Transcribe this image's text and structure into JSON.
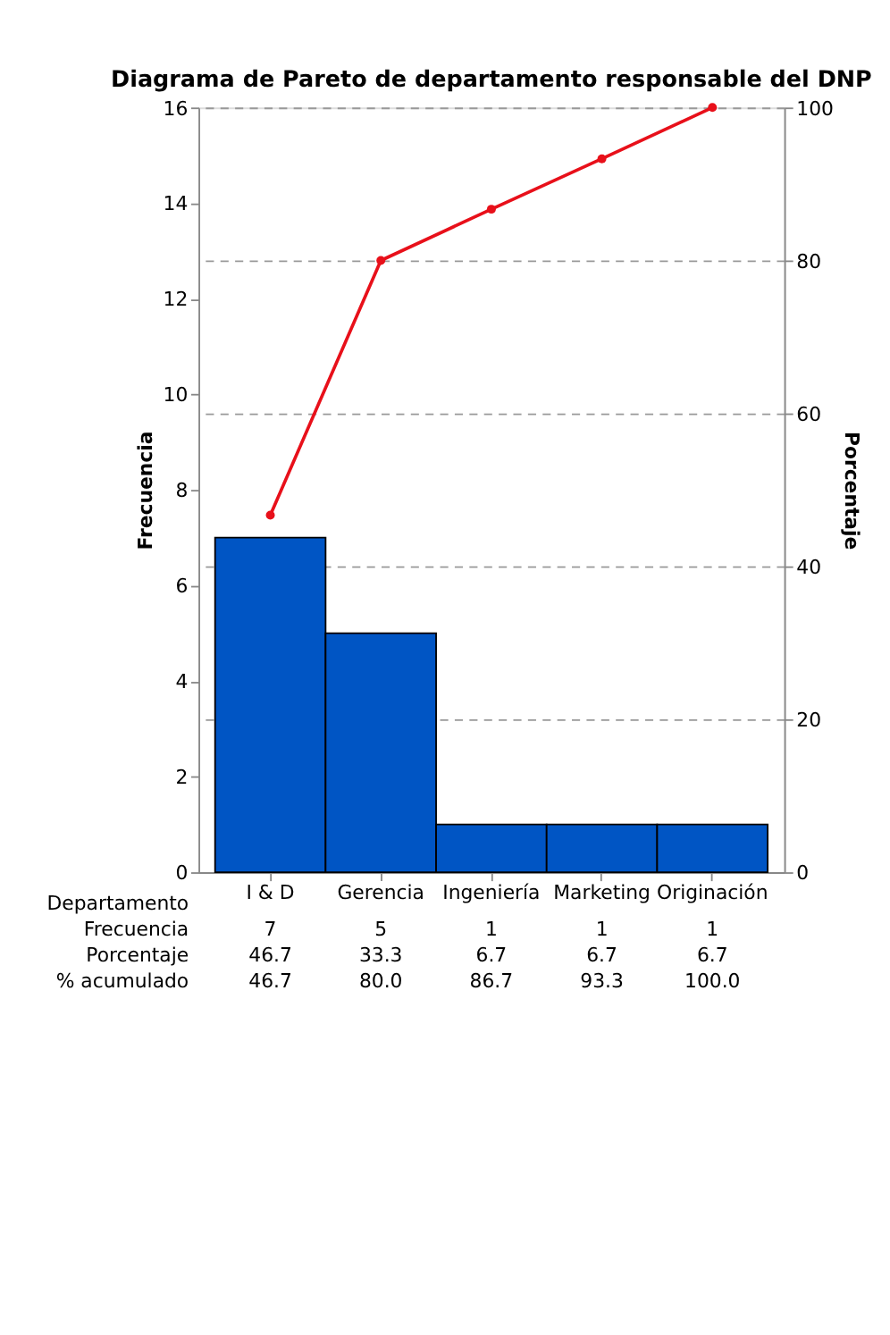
{
  "chart_data": {
    "type": "bar",
    "title": "Diagrama de Pareto de departamento responsable del DNP",
    "xlabel": "Departamento",
    "ylabel": "Frecuencia",
    "y2label": "Porcentaje",
    "categories": [
      "I & D",
      "Gerencia",
      "Ingeniería",
      "Marketing",
      "Originación"
    ],
    "series": [
      {
        "color": "#0055c4",
        "values": [
          7,
          5,
          1,
          1,
          1
        ],
        "value_labels": [
          "7",
          "5",
          "1",
          "1",
          "1"
        ]
      },
      {
        "type": "line",
        "axis": "y2",
        "color": "#e8101a",
        "values": [
          46.7,
          80.0,
          86.7,
          93.3,
          100.0
        ],
        "value_labels": [
          "46.7",
          "80.0",
          "86.7",
          "93.3",
          "100.0"
        ]
      }
    ],
    "ylim": [
      0,
      16
    ],
    "yticks": [
      0,
      2,
      4,
      6,
      8,
      10,
      12,
      14,
      16
    ],
    "y2lim": [
      0,
      100
    ],
    "y2ticks": [
      0,
      20,
      40,
      60,
      80,
      100
    ],
    "grid": true,
    "marker": "circle",
    "line_style": "solid",
    "annotations": [
      "Frecuencia",
      "Porcentaje",
      "% acumulado",
      "46.7",
      "33.3",
      "6.7",
      "6.7",
      "6.7"
    ]
  }
}
